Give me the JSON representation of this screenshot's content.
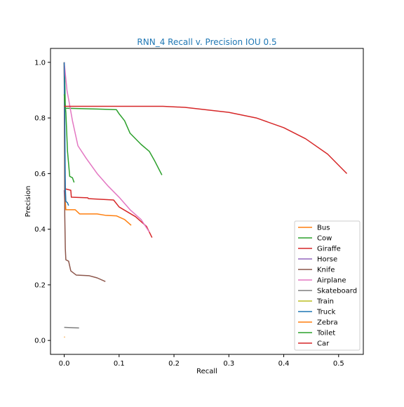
{
  "chart_data": {
    "type": "line",
    "title": "RNN_4 Recall v. Precision IOU 0.5",
    "xlabel": "Recall",
    "ylabel": "Precision",
    "xlim": [
      -0.025,
      0.545
    ],
    "ylim": [
      -0.05,
      1.05
    ],
    "xticks": [
      0.0,
      0.1,
      0.2,
      0.3,
      0.4,
      0.5
    ],
    "xtick_labels": [
      "0.0",
      "0.1",
      "0.2",
      "0.3",
      "0.4",
      "0.5"
    ],
    "yticks": [
      0.0,
      0.2,
      0.4,
      0.6,
      0.8,
      1.0
    ],
    "ytick_labels": [
      "0.0",
      "0.2",
      "0.4",
      "0.6",
      "0.8",
      "1.0"
    ],
    "grid": false,
    "legend_position": "lower-right",
    "series": [
      {
        "name": "Bus",
        "color": "#ff7f0e",
        "points": [
          [
            0,
            1.0
          ],
          [
            0.001,
            0.62
          ],
          [
            0.002,
            0.5
          ],
          [
            0.003,
            0.47
          ],
          [
            0.02,
            0.47
          ],
          [
            0.028,
            0.455
          ],
          [
            0.06,
            0.455
          ],
          [
            0.075,
            0.45
          ],
          [
            0.095,
            0.448
          ],
          [
            0.11,
            0.435
          ],
          [
            0.122,
            0.414
          ]
        ]
      },
      {
        "name": "Cow",
        "color": "#2ca02c",
        "points": [
          [
            0,
            1.0
          ],
          [
            0.001,
            0.95
          ],
          [
            0.002,
            0.835
          ],
          [
            0.06,
            0.832
          ],
          [
            0.095,
            0.83
          ],
          [
            0.1,
            0.815
          ],
          [
            0.11,
            0.79
          ],
          [
            0.12,
            0.745
          ],
          [
            0.14,
            0.705
          ],
          [
            0.155,
            0.68
          ],
          [
            0.165,
            0.645
          ],
          [
            0.178,
            0.595
          ]
        ]
      },
      {
        "name": "Giraffe",
        "color": "#d62728",
        "points": [
          [
            0,
            1.0
          ],
          [
            0.001,
            0.63
          ],
          [
            0.002,
            0.545
          ],
          [
            0.012,
            0.54
          ],
          [
            0.013,
            0.515
          ],
          [
            0.043,
            0.513
          ],
          [
            0.044,
            0.51
          ],
          [
            0.09,
            0.505
          ],
          [
            0.1,
            0.48
          ],
          [
            0.13,
            0.445
          ],
          [
            0.15,
            0.41
          ],
          [
            0.16,
            0.37
          ]
        ]
      },
      {
        "name": "Horse",
        "color": "#9467bd",
        "points": [
          [
            0,
            0.54
          ],
          [
            0.001,
            0.5
          ]
        ]
      },
      {
        "name": "Knife",
        "color": "#8c564b",
        "points": [
          [
            0,
            1.0
          ],
          [
            0.001,
            0.45
          ],
          [
            0.002,
            0.33
          ],
          [
            0.003,
            0.29
          ],
          [
            0.008,
            0.285
          ],
          [
            0.012,
            0.25
          ],
          [
            0.022,
            0.235
          ],
          [
            0.045,
            0.233
          ],
          [
            0.06,
            0.225
          ],
          [
            0.075,
            0.212
          ]
        ]
      },
      {
        "name": "Airplane",
        "color": "#e377c2",
        "points": [
          [
            0,
            1.0
          ],
          [
            0.005,
            0.9
          ],
          [
            0.01,
            0.845
          ],
          [
            0.015,
            0.79
          ],
          [
            0.025,
            0.7
          ],
          [
            0.04,
            0.655
          ],
          [
            0.06,
            0.6
          ],
          [
            0.08,
            0.555
          ],
          [
            0.1,
            0.515
          ],
          [
            0.12,
            0.47
          ],
          [
            0.14,
            0.435
          ],
          [
            0.155,
            0.39
          ]
        ]
      },
      {
        "name": "Skateboard",
        "color": "#7f7f7f",
        "points": [
          [
            0,
            0.047
          ],
          [
            0.015,
            0.046
          ],
          [
            0.027,
            0.045
          ]
        ]
      },
      {
        "name": "Train",
        "color": "#bcbd22",
        "points": [
          [
            0,
            0.012
          ],
          [
            0.001,
            0.012
          ]
        ]
      },
      {
        "name": "Truck",
        "color": "#1f77b4",
        "points": [
          [
            0,
            1.0
          ],
          [
            0.001,
            0.8
          ],
          [
            0.002,
            0.55
          ],
          [
            0.003,
            0.5
          ],
          [
            0.006,
            0.495
          ],
          [
            0.008,
            0.485
          ]
        ]
      },
      {
        "name": "Zebra",
        "color": "#ff7f0e",
        "points": [
          [
            0,
            0.012
          ],
          [
            0.001,
            0.012
          ]
        ]
      },
      {
        "name": "Toilet",
        "color": "#2ca02c",
        "points": [
          [
            0,
            0.885
          ],
          [
            0.003,
            0.82
          ],
          [
            0.006,
            0.68
          ],
          [
            0.01,
            0.59
          ],
          [
            0.015,
            0.585
          ],
          [
            0.018,
            0.568
          ]
        ]
      },
      {
        "name": "Car",
        "color": "#d62728",
        "points": [
          [
            0,
            0.842
          ],
          [
            0.18,
            0.842
          ],
          [
            0.22,
            0.838
          ],
          [
            0.3,
            0.82
          ],
          [
            0.35,
            0.8
          ],
          [
            0.4,
            0.765
          ],
          [
            0.44,
            0.725
          ],
          [
            0.48,
            0.67
          ],
          [
            0.5,
            0.63
          ],
          [
            0.515,
            0.6
          ]
        ]
      }
    ]
  }
}
